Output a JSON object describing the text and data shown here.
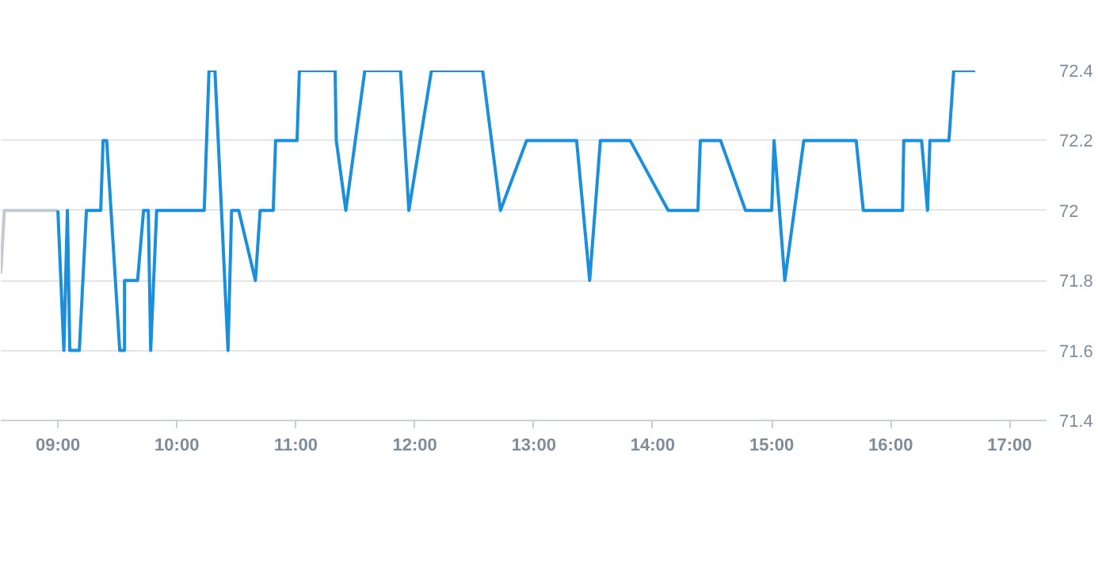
{
  "chart_data": {
    "type": "line",
    "xlim": [
      8.52,
      17.31
    ],
    "ylim": [
      71.4,
      72.4
    ],
    "xticks": [
      {
        "value": 9,
        "label": "09:00"
      },
      {
        "value": 10,
        "label": "10:00"
      },
      {
        "value": 11,
        "label": "11:00"
      },
      {
        "value": 12,
        "label": "12:00"
      },
      {
        "value": 13,
        "label": "13:00"
      },
      {
        "value": 14,
        "label": "14:00"
      },
      {
        "value": 15,
        "label": "15:00"
      },
      {
        "value": 16,
        "label": "16:00"
      },
      {
        "value": 17,
        "label": "17:00"
      }
    ],
    "yticks": [
      71.4,
      71.6,
      71.8,
      72,
      72.2,
      72.4
    ],
    "grid": "y",
    "marker": "none",
    "line_style": "solid",
    "series": [
      {
        "color": "#c2cad2",
        "x": [
          8.52,
          8.55,
          9.0
        ],
        "values": [
          71.82,
          72.0,
          72.0
        ]
      },
      {
        "color": "#1a8fdc",
        "x": [
          9.0,
          9.05,
          9.08,
          9.1,
          9.18,
          9.24,
          9.36,
          9.38,
          9.41,
          9.52,
          9.56,
          9.56,
          9.67,
          9.72,
          9.76,
          9.78,
          9.83,
          10.23,
          10.27,
          10.32,
          10.43,
          10.46,
          10.52,
          10.66,
          10.7,
          10.81,
          10.83,
          11.01,
          11.03,
          11.33,
          11.34,
          11.42,
          11.58,
          11.88,
          11.95,
          12.14,
          12.57,
          12.72,
          12.94,
          13.36,
          13.47,
          13.56,
          13.81,
          14.13,
          14.38,
          14.4,
          14.57,
          14.78,
          15.0,
          15.02,
          15.11,
          15.27,
          15.71,
          15.77,
          16.1,
          16.11,
          16.26,
          16.31,
          16.33,
          16.49,
          16.53,
          16.71
        ],
        "values": [
          72.0,
          71.6,
          72.0,
          71.6,
          71.6,
          72.0,
          72.0,
          72.2,
          72.2,
          71.6,
          71.6,
          71.8,
          71.8,
          72.0,
          72.0,
          71.6,
          72.0,
          72.0,
          72.4,
          72.4,
          71.6,
          72.0,
          72.0,
          71.8,
          72.0,
          72.0,
          72.2,
          72.2,
          72.4,
          72.4,
          72.2,
          72.0,
          72.4,
          72.4,
          72.0,
          72.4,
          72.4,
          72.0,
          72.2,
          72.2,
          71.8,
          72.2,
          72.2,
          72.0,
          72.0,
          72.2,
          72.2,
          72.0,
          72.0,
          72.2,
          71.8,
          72.2,
          72.2,
          72.0,
          72.0,
          72.2,
          72.2,
          72.0,
          72.2,
          72.2,
          72.4,
          72.4
        ]
      }
    ]
  }
}
